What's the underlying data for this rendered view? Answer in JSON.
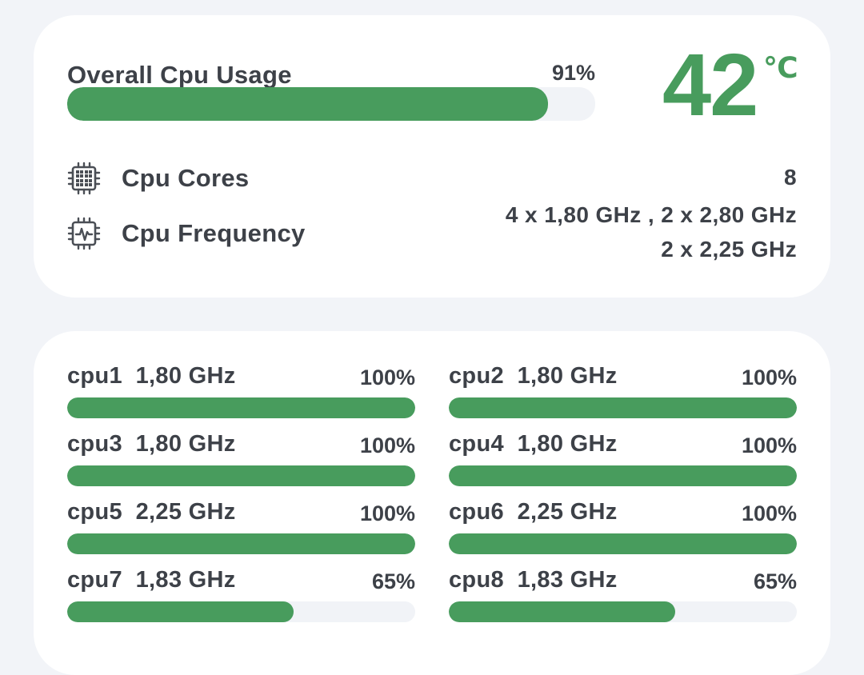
{
  "summary": {
    "overall_label": "Overall Cpu Usage",
    "overall_percent": 91,
    "overall_percent_text": "91%",
    "temperature_value": "42",
    "temperature_unit": "℃",
    "cores_label": "Cpu Cores",
    "cores_value": "8",
    "frequency_label": "Cpu Frequency",
    "frequency_line1": "4 x 1,80 GHz , 2 x 2,80 GHz",
    "frequency_line2": "2 x 2,25 GHz"
  },
  "cores": [
    {
      "name": "cpu1",
      "freq": "1,80 GHz",
      "percent": 100,
      "percent_text": "100%"
    },
    {
      "name": "cpu2",
      "freq": "1,80 GHz",
      "percent": 100,
      "percent_text": "100%"
    },
    {
      "name": "cpu3",
      "freq": "1,80 GHz",
      "percent": 100,
      "percent_text": "100%"
    },
    {
      "name": "cpu4",
      "freq": "1,80 GHz",
      "percent": 100,
      "percent_text": "100%"
    },
    {
      "name": "cpu5",
      "freq": "2,25 GHz",
      "percent": 100,
      "percent_text": "100%"
    },
    {
      "name": "cpu6",
      "freq": "2,25 GHz",
      "percent": 100,
      "percent_text": "100%"
    },
    {
      "name": "cpu7",
      "freq": "1,83 GHz",
      "percent": 65,
      "percent_text": "65%"
    },
    {
      "name": "cpu8",
      "freq": "1,83 GHz",
      "percent": 65,
      "percent_text": "65%"
    }
  ],
  "colors": {
    "accent": "#489c5d",
    "track": "#f1f3f7",
    "text": "#3d4148",
    "background": "#f2f4f8",
    "card": "#ffffff"
  },
  "icons": {
    "cores": "cpu-chip-icon",
    "frequency": "cpu-frequency-icon"
  }
}
